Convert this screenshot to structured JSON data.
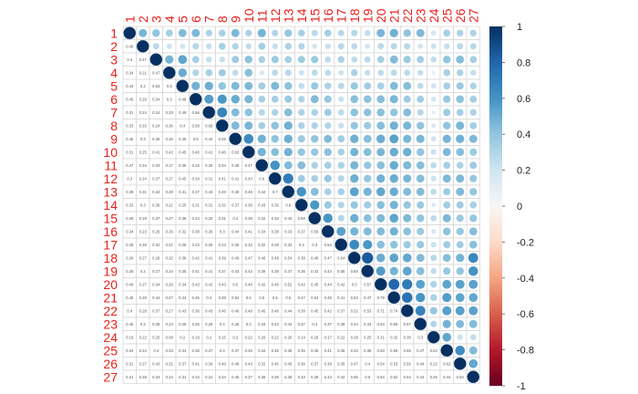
{
  "chart_data": {
    "type": "heatmap",
    "style": "corrplot-circle-upper-mixed",
    "variables": [
      "1",
      "2",
      "3",
      "4",
      "5",
      "6",
      "7",
      "8",
      "9",
      "10",
      "11",
      "12",
      "13",
      "14",
      "15",
      "16",
      "17",
      "18",
      "19",
      "20",
      "21",
      "22",
      "23",
      "24",
      "25",
      "26",
      "27"
    ],
    "label_color": "#e8211d",
    "colorbar": {
      "range": [
        -1,
        1
      ],
      "ticks": [
        "1",
        "0.8",
        "0.6",
        "0.4",
        "0.2",
        "0",
        "-0.2",
        "-0.4",
        "-0.6",
        "-0.8",
        "-1"
      ],
      "colors": [
        "#67001f",
        "#b2182b",
        "#d6604d",
        "#f4a582",
        "#fddbc7",
        "#f7f7f7",
        "#d1e5f0",
        "#92c5de",
        "#4393c3",
        "#2166ac",
        "#053061"
      ]
    },
    "matrix": [
      [
        1,
        0.46,
        0.4,
        0.34,
        0.44,
        0.45,
        0.31,
        0.33,
        0.45,
        0.31,
        0.47,
        0.3,
        0.39,
        0.33,
        0.28,
        0.34,
        0.28,
        0.29,
        0.25,
        0.46,
        0.48,
        0.4,
        0.45,
        0.19,
        0.34,
        0.31,
        0.31
      ],
      [
        0.46,
        1,
        0.27,
        0.21,
        0.2,
        0.29,
        0.24,
        0.33,
        0.3,
        0.25,
        0.34,
        0.24,
        0.31,
        0.3,
        0.19,
        0.23,
        0.28,
        0.27,
        0.2,
        0.27,
        0.28,
        0.28,
        0.2,
        0.22,
        0.24,
        0.27,
        0.28
      ],
      [
        0.4,
        0.27,
        1,
        0.47,
        0.53,
        0.34,
        0.24,
        0.24,
        0.36,
        0.41,
        0.33,
        0.37,
        0.34,
        0.36,
        0.37,
        0.26,
        0.32,
        0.26,
        0.27,
        0.34,
        0.44,
        0.37,
        0.35,
        0.25,
        0.4,
        0.43,
        0.34
      ],
      [
        0.34,
        0.21,
        0.47,
        1,
        0.5,
        0.3,
        0.33,
        0.36,
        0.26,
        0.42,
        0.17,
        0.27,
        0.28,
        0.21,
        0.27,
        0.26,
        0.21,
        0.32,
        0.24,
        0.26,
        0.27,
        0.27,
        0.24,
        0.09,
        0.33,
        0.31,
        0.24
      ],
      [
        0.44,
        0.2,
        0.53,
        0.5,
        1,
        0.48,
        0.49,
        0.4,
        0.45,
        0.45,
        0.35,
        0.45,
        0.41,
        0.25,
        0.38,
        0.32,
        0.28,
        0.38,
        0.35,
        0.34,
        0.44,
        0.43,
        0.26,
        0.2,
        0.34,
        0.37,
        0.31
      ],
      [
        0.45,
        0.29,
        0.34,
        0.3,
        0.48,
        1,
        0.56,
        0.58,
        0.5,
        0.46,
        0.33,
        0.34,
        0.37,
        0.31,
        0.44,
        0.38,
        0.23,
        0.42,
        0.41,
        0.43,
        0.46,
        0.36,
        0.35,
        0.19,
        0.38,
        0.41,
        0.34
      ],
      [
        0.31,
        0.24,
        0.24,
        0.33,
        0.49,
        0.56,
        1,
        0.66,
        0.44,
        0.41,
        0.29,
        0.31,
        0.43,
        0.31,
        0.32,
        0.36,
        0.26,
        0.41,
        0.41,
        0.42,
        0.4,
        0.43,
        0.29,
        0.1,
        0.37,
        0.34,
        0.31
      ],
      [
        0.33,
        0.33,
        0.24,
        0.36,
        0.4,
        0.58,
        0.66,
        1,
        0.45,
        0.46,
        0.34,
        0.41,
        0.48,
        0.32,
        0.31,
        0.3,
        0.23,
        0.39,
        0.37,
        0.43,
        0.48,
        0.46,
        0.4,
        0.15,
        0.4,
        0.46,
        0.34
      ],
      [
        0.45,
        0.3,
        0.36,
        0.26,
        0.45,
        0.5,
        0.44,
        0.45,
        1,
        0.63,
        0.48,
        0.41,
        0.49,
        0.37,
        0.4,
        0.44,
        0.35,
        0.49,
        0.43,
        0.5,
        0.54,
        0.46,
        0.46,
        0.2,
        0.47,
        0.48,
        0.45
      ],
      [
        0.31,
        0.25,
        0.41,
        0.42,
        0.45,
        0.46,
        0.41,
        0.46,
        0.63,
        1,
        0.47,
        0.43,
        0.48,
        0.39,
        0.39,
        0.41,
        0.33,
        0.47,
        0.43,
        0.46,
        0.5,
        0.49,
        0.4,
        0.22,
        0.45,
        0.43,
        0.37
      ],
      [
        0.47,
        0.34,
        0.33,
        0.17,
        0.35,
        0.33,
        0.29,
        0.34,
        0.48,
        0.47,
        1,
        0.6,
        0.44,
        0.43,
        0.32,
        0.34,
        0.32,
        0.46,
        0.39,
        0.42,
        0.5,
        0.45,
        0.43,
        0.26,
        0.34,
        0.32,
        0.36
      ],
      [
        0.3,
        0.24,
        0.37,
        0.27,
        0.45,
        0.34,
        0.31,
        0.41,
        0.41,
        0.43,
        0.6,
        1,
        0.7,
        0.36,
        0.33,
        0.38,
        0.29,
        0.49,
        0.39,
        0.48,
        0.5,
        0.46,
        0.43,
        0.22,
        0.45,
        0.45,
        0.38
      ],
      [
        0.39,
        0.31,
        0.34,
        0.28,
        0.41,
        0.37,
        0.43,
        0.48,
        0.49,
        0.48,
        0.44,
        0.7,
        1,
        0.6,
        0.43,
        0.33,
        0.33,
        0.54,
        0.47,
        0.52,
        0.5,
        0.44,
        0.44,
        0.26,
        0.36,
        0.45,
        0.39
      ],
      [
        0.33,
        0.3,
        0.36,
        0.21,
        0.25,
        0.31,
        0.31,
        0.32,
        0.37,
        0.39,
        0.43,
        0.36,
        0.6,
        1,
        0.58,
        0.37,
        0.3,
        0.39,
        0.36,
        0.42,
        0.47,
        0.39,
        0.37,
        0.14,
        0.35,
        0.36,
        0.33
      ],
      [
        0.28,
        0.19,
        0.37,
        0.27,
        0.38,
        0.44,
        0.32,
        0.31,
        0.4,
        0.39,
        0.32,
        0.33,
        0.43,
        0.58,
        1,
        0.59,
        0.3,
        0.49,
        0.42,
        0.45,
        0.53,
        0.45,
        0.4,
        0.26,
        0.45,
        0.37,
        0.39
      ],
      [
        0.34,
        0.23,
        0.26,
        0.26,
        0.32,
        0.38,
        0.36,
        0.3,
        0.44,
        0.41,
        0.34,
        0.38,
        0.33,
        0.37,
        0.59,
        1,
        0.54,
        0.47,
        0.44,
        0.44,
        0.48,
        0.42,
        0.37,
        0.17,
        0.41,
        0.39,
        0.43
      ],
      [
        0.28,
        0.28,
        0.32,
        0.21,
        0.28,
        0.23,
        0.26,
        0.23,
        0.35,
        0.33,
        0.32,
        0.29,
        0.33,
        0.3,
        0.3,
        0.54,
        1,
        0.64,
        0.58,
        0.42,
        0.41,
        0.37,
        0.38,
        0.22,
        0.36,
        0.35,
        0.42
      ],
      [
        0.29,
        0.27,
        0.26,
        0.32,
        0.38,
        0.42,
        0.41,
        0.39,
        0.49,
        0.47,
        0.46,
        0.49,
        0.54,
        0.39,
        0.49,
        0.47,
        0.64,
        1,
        0.84,
        0.5,
        0.53,
        0.52,
        0.44,
        0.28,
        0.43,
        0.47,
        0.65
      ],
      [
        0.25,
        0.2,
        0.27,
        0.24,
        0.35,
        0.41,
        0.41,
        0.37,
        0.43,
        0.43,
        0.39,
        0.39,
        0.47,
        0.36,
        0.42,
        0.44,
        0.58,
        0.84,
        1,
        0.57,
        0.47,
        0.53,
        0.43,
        0.25,
        0.38,
        0.4,
        0.6
      ],
      [
        0.46,
        0.27,
        0.34,
        0.26,
        0.34,
        0.43,
        0.42,
        0.43,
        0.5,
        0.46,
        0.42,
        0.48,
        0.52,
        0.42,
        0.45,
        0.44,
        0.42,
        0.5,
        0.57,
        1,
        0.79,
        0.71,
        0.54,
        0.31,
        0.53,
        0.54,
        0.54
      ],
      [
        0.48,
        0.28,
        0.44,
        0.27,
        0.44,
        0.46,
        0.4,
        0.48,
        0.54,
        0.5,
        0.5,
        0.5,
        0.5,
        0.47,
        0.53,
        0.48,
        0.41,
        0.53,
        0.47,
        0.79,
        1,
        0.74,
        0.59,
        0.32,
        0.56,
        0.53,
        0.52
      ],
      [
        0.4,
        0.28,
        0.37,
        0.27,
        0.43,
        0.36,
        0.43,
        0.46,
        0.46,
        0.49,
        0.45,
        0.46,
        0.44,
        0.39,
        0.45,
        0.42,
        0.37,
        0.52,
        0.53,
        0.71,
        0.74,
        1,
        0.67,
        0.38,
        0.55,
        0.55,
        0.54
      ],
      [
        0.45,
        0.2,
        0.35,
        0.24,
        0.26,
        0.35,
        0.29,
        0.4,
        0.46,
        0.4,
        0.43,
        0.43,
        0.44,
        0.37,
        0.4,
        0.37,
        0.38,
        0.44,
        0.43,
        0.54,
        0.59,
        0.67,
        1,
        0.3,
        0.47,
        0.44,
        0.44
      ],
      [
        0.19,
        0.22,
        0.25,
        0.09,
        0.2,
        0.19,
        0.1,
        0.15,
        0.2,
        0.22,
        0.26,
        0.22,
        0.26,
        0.14,
        0.26,
        0.17,
        0.22,
        0.28,
        0.25,
        0.31,
        0.32,
        0.38,
        0.3,
        1,
        0.52,
        0.22,
        0.25
      ],
      [
        0.34,
        0.24,
        0.4,
        0.33,
        0.34,
        0.38,
        0.37,
        0.4,
        0.47,
        0.45,
        0.34,
        0.45,
        0.36,
        0.35,
        0.45,
        0.41,
        0.36,
        0.43,
        0.38,
        0.53,
        0.56,
        0.55,
        0.47,
        0.52,
        1,
        0.62,
        0.44
      ],
      [
        0.31,
        0.27,
        0.43,
        0.31,
        0.37,
        0.41,
        0.34,
        0.46,
        0.48,
        0.43,
        0.32,
        0.45,
        0.45,
        0.36,
        0.37,
        0.39,
        0.35,
        0.47,
        0.4,
        0.54,
        0.53,
        0.55,
        0.44,
        0.22,
        0.62,
        1,
        0.52
      ],
      [
        0.31,
        0.28,
        0.34,
        0.24,
        0.31,
        0.34,
        0.31,
        0.34,
        0.45,
        0.37,
        0.36,
        0.38,
        0.39,
        0.33,
        0.39,
        0.43,
        0.42,
        0.65,
        0.6,
        0.54,
        0.52,
        0.54,
        0.44,
        0.25,
        0.44,
        0.52,
        1
      ]
    ]
  }
}
